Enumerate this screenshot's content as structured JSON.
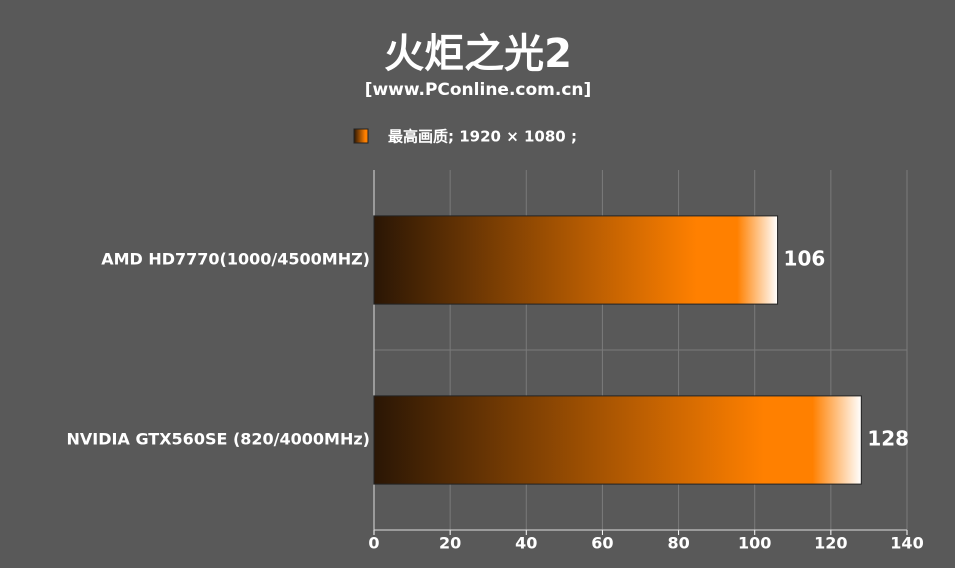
{
  "chart_data": {
    "type": "bar",
    "orientation": "horizontal",
    "title": "火炬之光2",
    "subtitle": "[www.PConline.com.cn]",
    "categories": [
      "AMD HD7770(1000/4500MHZ)",
      "NVIDIA GTX560SE  (820/4000MHz)"
    ],
    "series": [
      {
        "name": "最高画质; 1920 × 1080 ;",
        "color": "#ff8000",
        "values": [
          106,
          128
        ]
      }
    ],
    "xlim": [
      0,
      140
    ],
    "xticks": [
      0,
      20,
      40,
      60,
      80,
      100,
      120,
      140
    ],
    "grid": true
  }
}
